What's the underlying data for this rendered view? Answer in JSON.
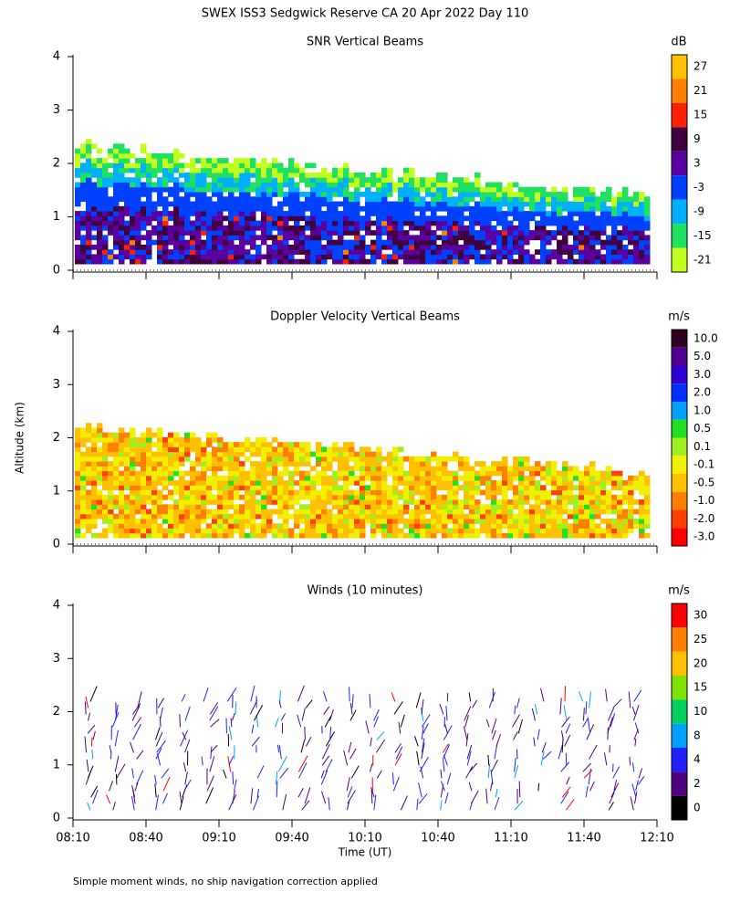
{
  "title": "SWEX ISS3 Sedgwick Reserve CA  20 Apr 2022 Day 110",
  "footnote": "Simple moment winds, no ship navigation correction applied",
  "chart_data": [
    {
      "type": "heatmap",
      "title": "SNR Vertical Beams",
      "ylim": [
        0,
        4
      ],
      "yticks": [
        0,
        1,
        2,
        3,
        4
      ],
      "colorbar": {
        "unit": "dB",
        "labels": [
          27,
          21,
          15,
          9,
          3,
          -3,
          -9,
          -15,
          -21
        ],
        "colors": [
          "#ffc000",
          "#ff8000",
          "#ff2000",
          "#400040",
          "#5a00a0",
          "#0040ff",
          "#00b0ff",
          "#20e060",
          "#c0ff20"
        ]
      }
    },
    {
      "type": "heatmap",
      "title": "Doppler Velocity Vertical Beams",
      "ylabel": "Altitude (km)",
      "ylim": [
        0,
        4
      ],
      "yticks": [
        0,
        1,
        2,
        3,
        4
      ],
      "colorbar": {
        "unit": "m/s",
        "labels": [
          {
            "value": 10,
            "label": "10.0"
          },
          {
            "value": 5,
            "label": "5.0"
          },
          {
            "value": 3,
            "label": "3.0"
          },
          {
            "value": 2,
            "label": "2.0"
          },
          {
            "value": 1,
            "label": "1.0"
          },
          0.5,
          0.1,
          -0.1,
          -0.5,
          {
            "value": -1,
            "label": "-1.0"
          },
          {
            "value": -2,
            "label": "-2.0"
          },
          {
            "value": -3,
            "label": "-3.0"
          }
        ],
        "colors": [
          "#300020",
          "#500090",
          "#3000d0",
          "#0030ff",
          "#00a0ff",
          "#20e020",
          "#a0f020",
          "#f0f000",
          "#ffc000",
          "#ff8000",
          "#ff4000",
          "#ff0000"
        ]
      }
    },
    {
      "type": "barbs",
      "title": "Winds (10 minutes)",
      "xlabel": "Time (UT)",
      "ylim": [
        0,
        4
      ],
      "yticks": [
        0,
        1,
        2,
        3,
        4
      ],
      "xticks": [
        "08:10",
        "08:40",
        "09:10",
        "09:40",
        "10:10",
        "10:40",
        "11:10",
        "11:40",
        "12:10"
      ],
      "colorbar": {
        "unit": "m/s",
        "labels": [
          30,
          25,
          20,
          15,
          10,
          8,
          4,
          2,
          0
        ],
        "colors": [
          "#ff0000",
          "#ff8000",
          "#ffc000",
          "#80e000",
          "#00d060",
          "#00a0ff",
          "#2020ff",
          "#500080",
          "#000000"
        ]
      }
    }
  ]
}
